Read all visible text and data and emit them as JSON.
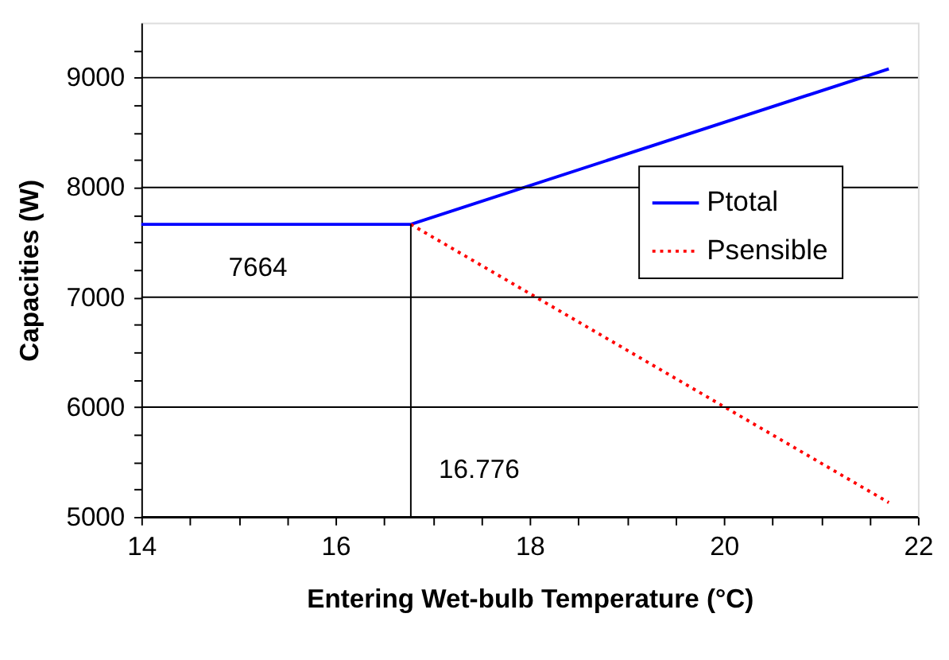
{
  "chart_data": {
    "type": "line",
    "xlabel": "Entering Wet-bulb Temperature (°C)",
    "ylabel": "Capacities (W)",
    "series": [
      {
        "name": "Ptotal",
        "color": "#0000ff",
        "line_style": "solid",
        "x": [
          14,
          16.776,
          21.7
        ],
        "values": [
          7664,
          7664,
          9080
        ]
      },
      {
        "name": "Psensible",
        "color": "#ff0000",
        "line_style": "dotted",
        "x": [
          16.776,
          21.7
        ],
        "values": [
          7664,
          5130
        ]
      }
    ],
    "xlim": [
      14,
      22
    ],
    "ylim": [
      5000,
      9500
    ],
    "xticks": [
      14,
      {
        "value": 14.5,
        "label": null
      },
      {
        "value": 15,
        "label": null
      },
      {
        "value": 15.5,
        "label": null
      },
      16,
      {
        "value": 16.5,
        "label": null
      },
      {
        "value": 17,
        "label": null
      },
      {
        "value": 17.5,
        "label": null
      },
      18,
      {
        "value": 18.5,
        "label": null
      },
      {
        "value": 19,
        "label": null
      },
      {
        "value": 19.5,
        "label": null
      },
      20,
      {
        "value": 20.5,
        "label": null
      },
      {
        "value": 21,
        "label": null
      },
      {
        "value": 21.5,
        "label": null
      },
      22
    ],
    "yticks": [
      5000,
      {
        "value": 5250,
        "label": null
      },
      {
        "value": 5500,
        "label": null
      },
      {
        "value": 5750,
        "label": null
      },
      6000,
      {
        "value": 6250,
        "label": null
      },
      {
        "value": 6500,
        "label": null
      },
      {
        "value": 6750,
        "label": null
      },
      7000,
      {
        "value": 7250,
        "label": null
      },
      {
        "value": 7500,
        "label": null
      },
      {
        "value": 7750,
        "label": null
      },
      8000,
      {
        "value": 8250,
        "label": null
      },
      {
        "value": 8500,
        "label": null
      },
      {
        "value": 8750,
        "label": null
      },
      9000,
      {
        "value": 9250,
        "label": null
      }
    ],
    "grid": "y",
    "legend": "right",
    "ref_lines": [
      {
        "axis": "x",
        "value": 16.776,
        "label": "16.776",
        "color": "#000000"
      }
    ],
    "annotations": [
      {
        "text": "7664",
        "x": 15.2,
        "y": 7664
      }
    ]
  }
}
